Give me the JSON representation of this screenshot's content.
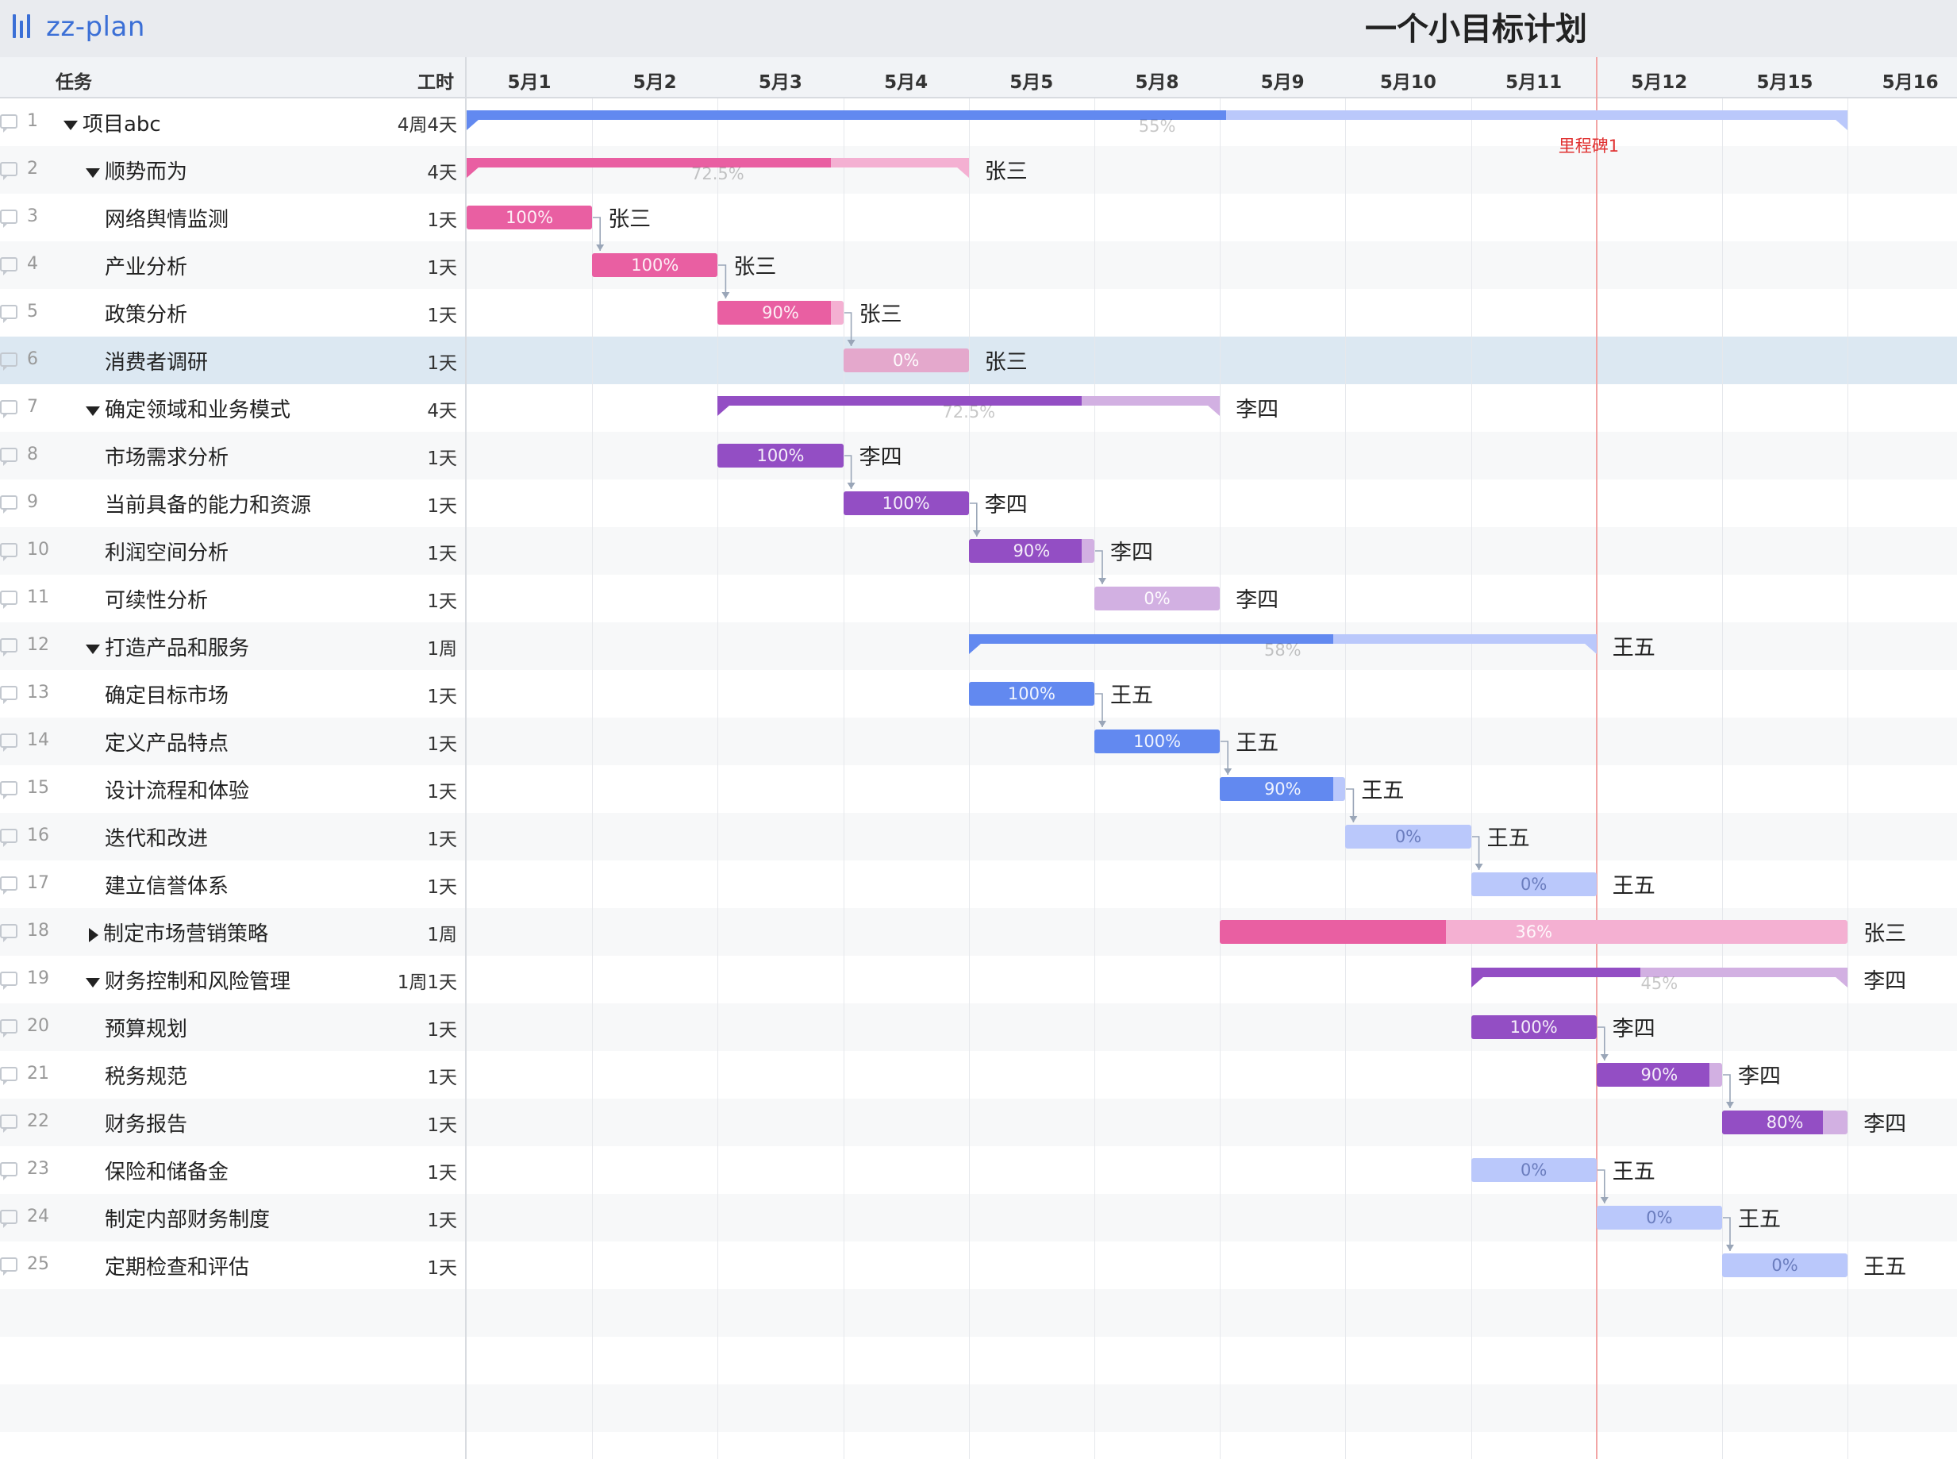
{
  "app": {
    "logo_text": "zz-plan",
    "title": "一个小目标计划"
  },
  "header": {
    "task": "任务",
    "work": "工时"
  },
  "days": [
    "5月1",
    "5月2",
    "5月3",
    "5月4",
    "5月5",
    "5月8",
    "5月9",
    "5月10",
    "5月11",
    "5月12",
    "5月15",
    "5月16"
  ],
  "milestone": {
    "label": "里程碑1",
    "day_index": 9
  },
  "colors": {
    "blue": "#6289f0",
    "blue_light": "#bac8fb",
    "pink": "#e95fa2",
    "pink_light": "#f4b0d2",
    "purple": "#934ec4",
    "purple_light": "#d2b0e2",
    "pink_pale": "#e4a8cc"
  },
  "selected_row": 6,
  "tasks": [
    {
      "num": "1",
      "name": "项目abc",
      "work": "4周4天",
      "level": 0,
      "toggle": "open",
      "type": "summary",
      "start": 0,
      "end": 11,
      "progress": 55,
      "pct": "55%",
      "color": "blue",
      "assignee": ""
    },
    {
      "num": "2",
      "name": "顺势而为",
      "work": "4天",
      "level": 1,
      "toggle": "open",
      "type": "summary",
      "start": 0,
      "end": 4,
      "progress": 72.5,
      "pct": "72.5%",
      "color": "pink",
      "assignee": "张三"
    },
    {
      "num": "3",
      "name": "网络舆情监测",
      "work": "1天",
      "level": 2,
      "type": "task",
      "start": 0,
      "end": 1,
      "progress": 100,
      "pct": "100%",
      "color": "pink",
      "assignee": "张三"
    },
    {
      "num": "4",
      "name": "产业分析",
      "work": "1天",
      "level": 2,
      "type": "task",
      "start": 1,
      "end": 2,
      "progress": 100,
      "pct": "100%",
      "color": "pink",
      "assignee": "张三"
    },
    {
      "num": "5",
      "name": "政策分析",
      "work": "1天",
      "level": 2,
      "type": "task",
      "start": 2,
      "end": 3,
      "progress": 90,
      "pct": "90%",
      "color": "pink",
      "assignee": "张三"
    },
    {
      "num": "6",
      "name": "消费者调研",
      "work": "1天",
      "level": 2,
      "type": "task",
      "start": 3,
      "end": 4,
      "progress": 0,
      "pct": "0%",
      "color": "pink_pale",
      "assignee": "张三"
    },
    {
      "num": "7",
      "name": "确定领域和业务模式",
      "work": "4天",
      "level": 1,
      "toggle": "open",
      "type": "summary",
      "start": 2,
      "end": 6,
      "progress": 72.5,
      "pct": "72.5%",
      "color": "purple",
      "assignee": "李四"
    },
    {
      "num": "8",
      "name": "市场需求分析",
      "work": "1天",
      "level": 2,
      "type": "task",
      "start": 2,
      "end": 3,
      "progress": 100,
      "pct": "100%",
      "color": "purple",
      "assignee": "李四"
    },
    {
      "num": "9",
      "name": "当前具备的能力和资源",
      "work": "1天",
      "level": 2,
      "type": "task",
      "start": 3,
      "end": 4,
      "progress": 100,
      "pct": "100%",
      "color": "purple",
      "assignee": "李四"
    },
    {
      "num": "10",
      "name": "利润空间分析",
      "work": "1天",
      "level": 2,
      "type": "task",
      "start": 4,
      "end": 5,
      "progress": 90,
      "pct": "90%",
      "color": "purple",
      "assignee": "李四"
    },
    {
      "num": "11",
      "name": "可续性分析",
      "work": "1天",
      "level": 2,
      "type": "task",
      "start": 5,
      "end": 6,
      "progress": 0,
      "pct": "0%",
      "color": "purple",
      "assignee": "李四"
    },
    {
      "num": "12",
      "name": "打造产品和服务",
      "work": "1周",
      "level": 1,
      "toggle": "open",
      "type": "summary",
      "start": 4,
      "end": 9,
      "progress": 58,
      "pct": "58%",
      "color": "blue",
      "assignee": "王五"
    },
    {
      "num": "13",
      "name": "确定目标市场",
      "work": "1天",
      "level": 2,
      "type": "task",
      "start": 4,
      "end": 5,
      "progress": 100,
      "pct": "100%",
      "color": "blue",
      "assignee": "王五"
    },
    {
      "num": "14",
      "name": "定义产品特点",
      "work": "1天",
      "level": 2,
      "type": "task",
      "start": 5,
      "end": 6,
      "progress": 100,
      "pct": "100%",
      "color": "blue",
      "assignee": "王五"
    },
    {
      "num": "15",
      "name": "设计流程和体验",
      "work": "1天",
      "level": 2,
      "type": "task",
      "start": 6,
      "end": 7,
      "progress": 90,
      "pct": "90%",
      "color": "blue",
      "assignee": "王五"
    },
    {
      "num": "16",
      "name": "迭代和改进",
      "work": "1天",
      "level": 2,
      "type": "task",
      "start": 7,
      "end": 8,
      "progress": 0,
      "pct": "0%",
      "color": "blue",
      "assignee": "王五"
    },
    {
      "num": "17",
      "name": "建立信誉体系",
      "work": "1天",
      "level": 2,
      "type": "task",
      "start": 8,
      "end": 9,
      "progress": 0,
      "pct": "0%",
      "color": "blue",
      "assignee": "王五"
    },
    {
      "num": "18",
      "name": "制定市场营销策略",
      "work": "1周",
      "level": 1,
      "toggle": "closed",
      "type": "task",
      "start": 6,
      "end": 11,
      "progress": 36,
      "pct": "36%",
      "color": "pink",
      "assignee": "张三"
    },
    {
      "num": "19",
      "name": "财务控制和风险管理",
      "work": "1周1天",
      "level": 1,
      "toggle": "open",
      "type": "summary",
      "start": 8,
      "end": 11,
      "progress": 45,
      "pct": "45%",
      "color": "purple",
      "assignee": "李四"
    },
    {
      "num": "20",
      "name": "预算规划",
      "work": "1天",
      "level": 2,
      "type": "task",
      "start": 8,
      "end": 9,
      "progress": 100,
      "pct": "100%",
      "color": "purple",
      "assignee": "李四"
    },
    {
      "num": "21",
      "name": "税务规范",
      "work": "1天",
      "level": 2,
      "type": "task",
      "start": 9,
      "end": 10,
      "progress": 90,
      "pct": "90%",
      "color": "purple",
      "assignee": "李四"
    },
    {
      "num": "22",
      "name": "财务报告",
      "work": "1天",
      "level": 2,
      "type": "task",
      "start": 10,
      "end": 11,
      "progress": 80,
      "pct": "80%",
      "color": "purple",
      "assignee": "李四"
    },
    {
      "num": "23",
      "name": "保险和储备金",
      "work": "1天",
      "level": 2,
      "type": "task",
      "start": 8,
      "end": 9,
      "progress": 0,
      "pct": "0%",
      "color": "blue",
      "assignee": "王五"
    },
    {
      "num": "24",
      "name": "制定内部财务制度",
      "work": "1天",
      "level": 2,
      "type": "task",
      "start": 9,
      "end": 10,
      "progress": 0,
      "pct": "0%",
      "color": "blue",
      "assignee": "王五"
    },
    {
      "num": "25",
      "name": "定期检查和评估",
      "work": "1天",
      "level": 2,
      "type": "task",
      "start": 10,
      "end": 11,
      "progress": 0,
      "pct": "0%",
      "color": "blue",
      "assignee": "王五"
    }
  ],
  "dependencies": [
    [
      3,
      4
    ],
    [
      4,
      5
    ],
    [
      5,
      6
    ],
    [
      8,
      9
    ],
    [
      9,
      10
    ],
    [
      10,
      11
    ],
    [
      13,
      14
    ],
    [
      14,
      15
    ],
    [
      15,
      16
    ],
    [
      16,
      17
    ],
    [
      20,
      21
    ],
    [
      21,
      22
    ],
    [
      23,
      24
    ],
    [
      24,
      25
    ]
  ]
}
